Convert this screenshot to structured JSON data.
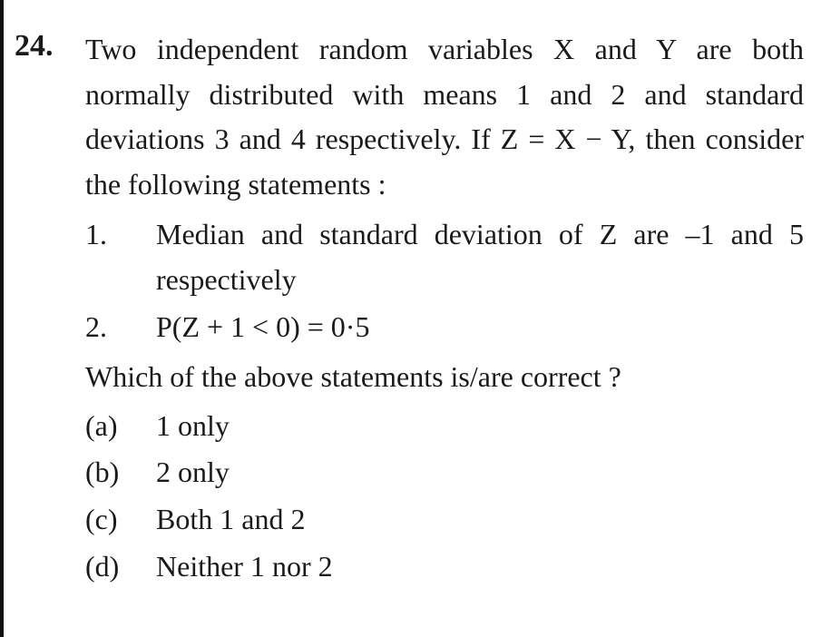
{
  "question": {
    "number": "24.",
    "stem": "Two independent random variables X and Y are both normally distributed with means 1 and 2 and standard deviations 3 and 4 respectively. If Z = X − Y, then consider the following statements :",
    "statements": [
      {
        "num": "1.",
        "text": "Median and standard deviation of Z are –1 and 5 respectively"
      },
      {
        "num": "2.",
        "text": "P(Z + 1 < 0) = 0·5"
      }
    ],
    "which": "Which of the above statements is/are correct ?",
    "options": [
      {
        "label": "(a)",
        "text": "1 only"
      },
      {
        "label": "(b)",
        "text": "2 only"
      },
      {
        "label": "(c)",
        "text": "Both 1 and 2"
      },
      {
        "label": "(d)",
        "text": "Neither 1 nor 2"
      }
    ]
  },
  "style": {
    "font_family": "Century Schoolbook, Georgia, Times New Roman, serif",
    "font_size_pt": 24,
    "text_color": "#1a1a1a",
    "background_color": "#ffffff",
    "left_rule_color": "#111111"
  }
}
